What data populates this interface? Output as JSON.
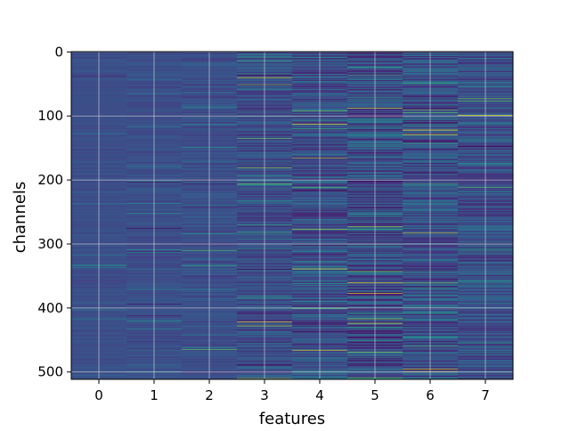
{
  "chart_data": {
    "type": "heatmap",
    "title": "",
    "xlabel": "features",
    "ylabel": "channels",
    "x_ticks": [
      "0",
      "1",
      "2",
      "3",
      "4",
      "5",
      "6",
      "7"
    ],
    "y_ticks": [
      "0",
      "100",
      "200",
      "300",
      "400",
      "500"
    ],
    "xlim": [
      -0.5,
      7.5
    ],
    "ylim": [
      511.5,
      -0.5
    ],
    "y_inverted": true,
    "rows": 512,
    "columns": 8,
    "grid": true,
    "colormap": "viridis",
    "column_variability": [
      0.05,
      0.07,
      0.1,
      0.16,
      0.2,
      0.25,
      0.22,
      0.18
    ],
    "colors": {
      "background": "#3b528b",
      "grid": "#d9d9d9",
      "low": "#440154",
      "high": "#fde725"
    }
  }
}
